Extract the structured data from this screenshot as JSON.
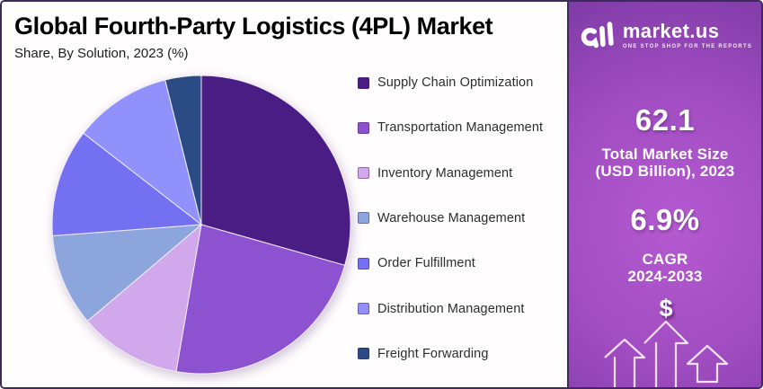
{
  "header": {
    "title": "Global Fourth-Party Logistics (4PL) Market",
    "subtitle": "Share, By Solution, 2023 (%)"
  },
  "chart_data": {
    "type": "pie",
    "title": "Global Fourth-Party Logistics (4PL) Market Share, By Solution, 2023",
    "unit": "%",
    "start_angle_deg": 0,
    "direction": "clockwise",
    "legend_position": "right",
    "categories": [
      "Supply Chain Optimization",
      "Transportation Management",
      "Inventory Management",
      "Warehouse Management",
      "Order Fulfillment",
      "Distribution Management",
      "Freight Forwarding"
    ],
    "values": [
      29.4,
      23.3,
      11.1,
      10.0,
      11.7,
      10.6,
      3.9
    ],
    "colors": [
      "#4a1d85",
      "#8c52cf",
      "#d2a8ec",
      "#8ca5dd",
      "#7470f2",
      "#9191fb",
      "#2a4b84"
    ]
  },
  "sidebar": {
    "brand": {
      "logo_icon": "market-us-logo",
      "name": "market.us",
      "tagline": "ONE STOP SHOP FOR THE REPORTS"
    },
    "stats": [
      {
        "value": "62.1",
        "label_line1": "Total Market Size",
        "label_line2": "(USD Billion), 2023"
      },
      {
        "value": "6.9%",
        "label_line1": "CAGR",
        "label_line2": "2024-2033"
      }
    ],
    "dollar_symbol": "$",
    "icons": [
      "dollar-icon",
      "growth-arrows-icon"
    ],
    "colors": {
      "gradient_center": "#b55ad1",
      "gradient_edge": "#5a2b80",
      "text": "#ffffff"
    }
  },
  "frame": {
    "border_color": "#3b2a5a",
    "card_background": "#fffdfd"
  }
}
